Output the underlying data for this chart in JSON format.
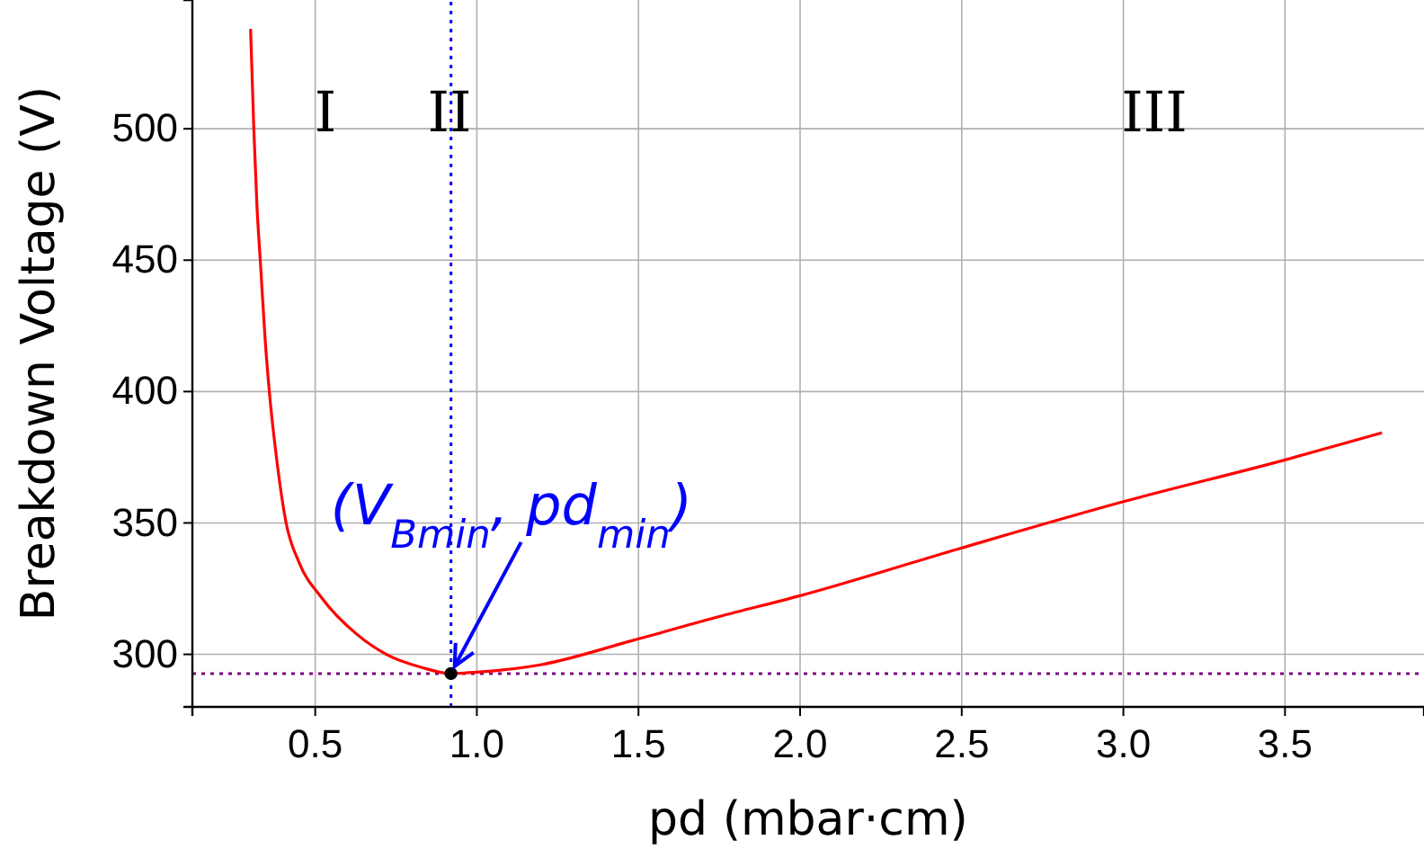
{
  "chart_data": {
    "type": "line",
    "xlabel": "pd (mbar·cm)",
    "ylabel": "Breakdown Voltage (V)",
    "xlim": [
      0.12,
      3.93
    ],
    "ylim": [
      280,
      549
    ],
    "xticks": [
      {
        "value": 0.5,
        "label": "0.5"
      },
      {
        "value": 1,
        "label": "1.0"
      },
      {
        "value": 1.5,
        "label": "1.5"
      },
      {
        "value": 2,
        "label": "2.0"
      },
      {
        "value": 2.5,
        "label": "2.5"
      },
      {
        "value": 3,
        "label": "3.0"
      },
      {
        "value": 3.5,
        "label": "3.5"
      }
    ],
    "yticks": [
      300,
      350,
      400,
      450,
      500
    ],
    "grid": true,
    "series": [
      {
        "color": "#ff0000",
        "marker": "none",
        "x": [
          0.3,
          0.31,
          0.32,
          0.33,
          0.345,
          0.358,
          0.38,
          0.41,
          0.45,
          0.52,
          0.63,
          0.72,
          0.83,
          0.92,
          1.0,
          1.2,
          1.48,
          1.75,
          2.0,
          2.5,
          3.0,
          3.5,
          3.8
        ],
        "values": [
          538,
          500,
          470,
          450,
          420,
          400,
          375,
          350,
          335,
          321.5,
          307.5,
          300,
          295,
          292.7,
          293.2,
          296.1,
          305.2,
          314.4,
          322.3,
          340.5,
          358.1,
          374,
          384.3
        ]
      },
      {
        "type": "scatter",
        "color": "#000000",
        "marker": "circle",
        "x": [
          0.92
        ],
        "values": [
          292.7
        ]
      }
    ],
    "ref_lines": [
      {
        "axis": "x",
        "value": 0.92,
        "color": "#0000ff",
        "line_style": "dotted"
      },
      {
        "axis": "y",
        "value": 292.7,
        "color": "#800080",
        "line_style": "dotted"
      }
    ],
    "annotations": [
      {
        "text": "(V$_{Bmin}$, pd$_{min}$)",
        "x": 0.92,
        "y": 292.7
      },
      "I",
      "II",
      "III"
    ]
  }
}
